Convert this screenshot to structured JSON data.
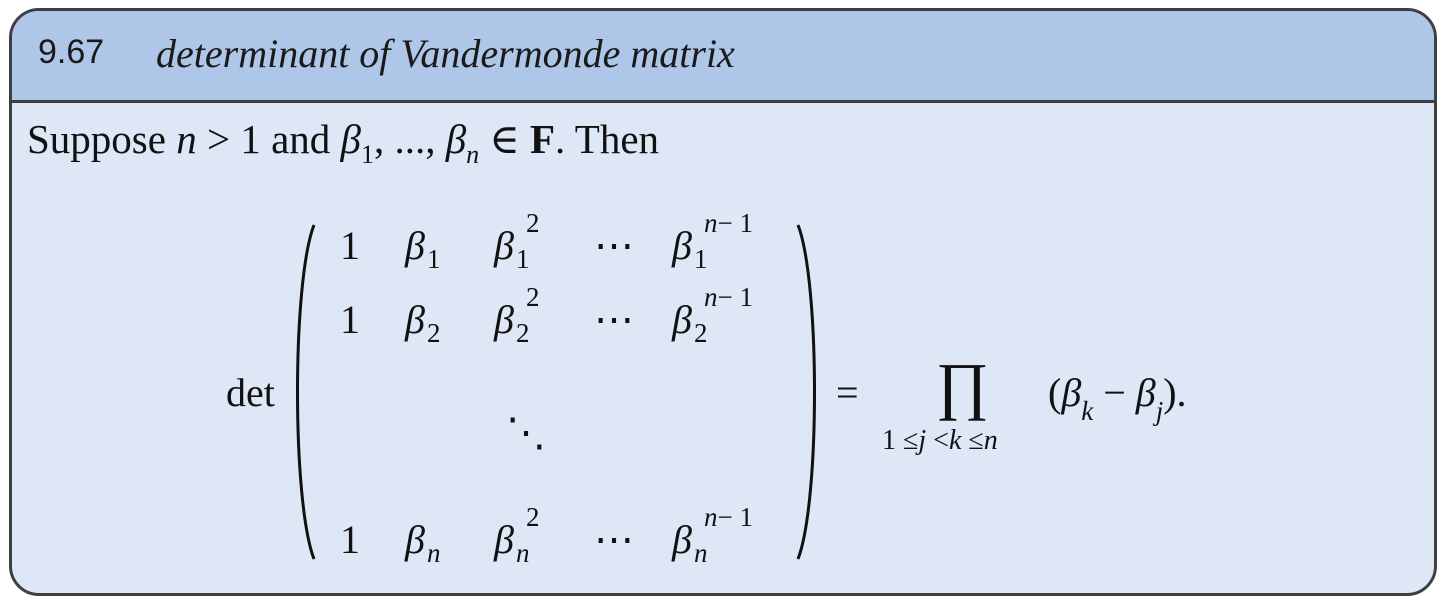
{
  "theorem": {
    "number": "9.67",
    "title": "determinant of Vandermonde matrix"
  },
  "statement": {
    "w_suppose": "Suppose",
    "n": "n",
    "gt_one": "> 1",
    "w_and": "and",
    "beta": "β",
    "sub_1": "1",
    "comma_dots": ", ..., ",
    "sub_n": "n",
    "in_sym": "∈",
    "field": "F",
    "then": ". Then"
  },
  "formula": {
    "det": "det",
    "one": "1",
    "beta": "β",
    "sq_exp": "2",
    "cdots": "⋯",
    "ddots": "⋱",
    "exp_n": "n",
    "exp_minus_one": "− 1",
    "row_subs": [
      "1",
      "2",
      "n"
    ],
    "equals": "=",
    "prod": "∏",
    "lim_one": "1",
    "lim_le": "≤",
    "lim_j": "j",
    "lim_lt": "<",
    "lim_k": "k",
    "lim_n": "n",
    "rhs_open": "(",
    "rhs_minus": "−",
    "rhs_close": ").",
    "k": "k",
    "j": "j"
  }
}
